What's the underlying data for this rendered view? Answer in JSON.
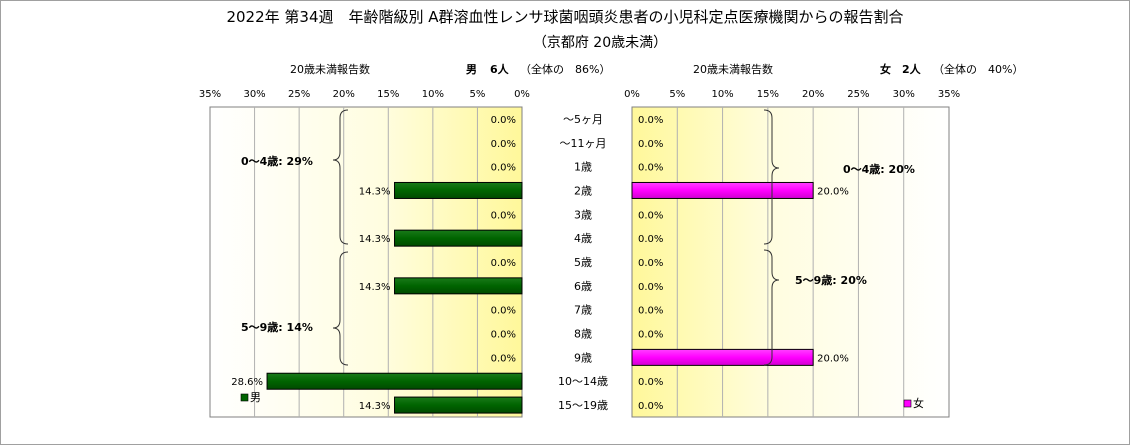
{
  "title": "2022年 第34週　年齢階級別 A群溶血性レンサ球菌咽頭炎患者の小児科定点医療機関からの報告割合",
  "subtitle": "（京都府 20歳未満）",
  "chart_data": [
    {
      "type": "bar",
      "orientation": "horizontal",
      "direction": "right-to-left",
      "header_label": "20歳未満報告数",
      "header_sex": "男",
      "header_count": "6人",
      "header_share": "（全体の　86%）",
      "categories": [
        "～5ヶ月",
        "～11ヶ月",
        "1歳",
        "2歳",
        "3歳",
        "4歳",
        "5歳",
        "6歳",
        "7歳",
        "8歳",
        "9歳",
        "10～14歳",
        "15～19歳"
      ],
      "series": [
        {
          "name": "男",
          "values": [
            0.0,
            0.0,
            0.0,
            14.3,
            0.0,
            14.3,
            0.0,
            14.3,
            0.0,
            0.0,
            0.0,
            28.6,
            14.3
          ]
        }
      ],
      "data_labels": [
        "0.0%",
        "0.0%",
        "0.0%",
        "14.3%",
        "0.0%",
        "14.3%",
        "0.0%",
        "14.3%",
        "0.0%",
        "0.0%",
        "0.0%",
        "28.6%",
        "14.3%"
      ],
      "xlim": [
        0,
        35
      ],
      "x_ticks": [
        "35%",
        "30%",
        "25%",
        "20%",
        "15%",
        "10%",
        "5%",
        "0%"
      ],
      "group_labels": [
        "0～4歳: 29%",
        "5～9歳: 14%"
      ],
      "legend": "bottom-left",
      "grid": true,
      "colors": {
        "bar": "#006400",
        "bar_edge": "#000000"
      }
    },
    {
      "type": "bar",
      "orientation": "horizontal",
      "direction": "left-to-right",
      "header_label": "20歳未満報告数",
      "header_sex": "女",
      "header_count": "2人",
      "header_share": "（全体の　40%）",
      "categories": [
        "～5ヶ月",
        "～11ヶ月",
        "1歳",
        "2歳",
        "3歳",
        "4歳",
        "5歳",
        "6歳",
        "7歳",
        "8歳",
        "9歳",
        "10～14歳",
        "15～19歳"
      ],
      "series": [
        {
          "name": "女",
          "values": [
            0.0,
            0.0,
            0.0,
            20.0,
            0.0,
            0.0,
            0.0,
            0.0,
            0.0,
            0.0,
            20.0,
            0.0,
            0.0
          ]
        }
      ],
      "data_labels": [
        "0.0%",
        "0.0%",
        "0.0%",
        "20.0%",
        "0.0%",
        "0.0%",
        "0.0%",
        "0.0%",
        "0.0%",
        "0.0%",
        "20.0%",
        "0.0%",
        "0.0%"
      ],
      "xlim": [
        0,
        35
      ],
      "x_ticks": [
        "0%",
        "5%",
        "10%",
        "15%",
        "20%",
        "25%",
        "30%",
        "35%"
      ],
      "group_labels": [
        "0～4歳: 20%",
        "5～9歳: 20%"
      ],
      "legend": "bottom-right",
      "grid": true,
      "colors": {
        "bar": "#ff00ff",
        "bar_edge": "#000000"
      }
    }
  ]
}
